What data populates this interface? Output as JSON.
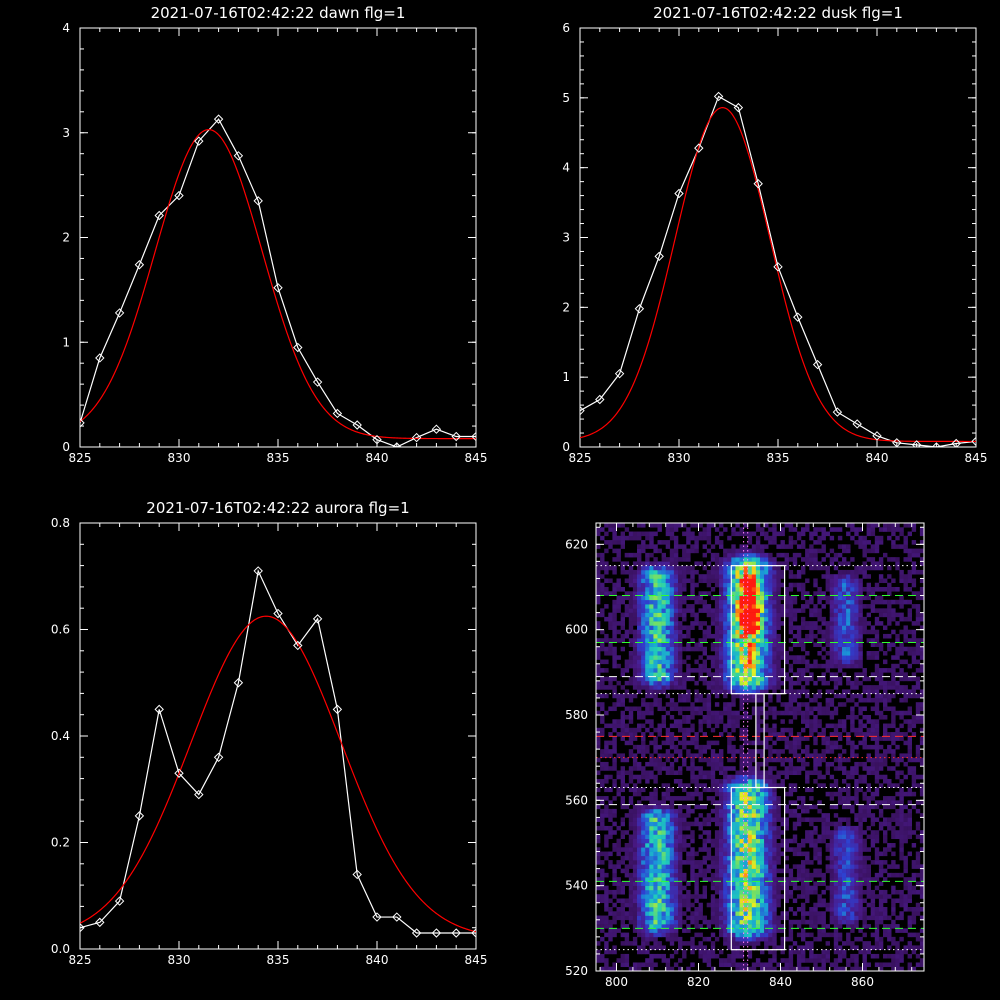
{
  "figure": {
    "background": "#000000",
    "axis_color": "#ffffff",
    "data_color": "#ffffff",
    "fit_color": "#ff0000"
  },
  "chart_data": [
    {
      "id": "dawn",
      "type": "line",
      "title": "2021-07-16T02:42:22 dawn flg=1",
      "xlabel": "",
      "ylabel": "",
      "xlim": [
        825,
        845
      ],
      "ylim": [
        0,
        4
      ],
      "xticks": [
        825,
        830,
        835,
        840,
        845
      ],
      "yticks": [
        0,
        1,
        2,
        3,
        4
      ],
      "grid": false,
      "series": [
        {
          "kind": "data",
          "marker": "diamond",
          "x": [
            825,
            826,
            827,
            828,
            829,
            830,
            831,
            832,
            833,
            834,
            835,
            836,
            837,
            838,
            839,
            840,
            841,
            842,
            843,
            844,
            845
          ],
          "y": [
            0.23,
            0.85,
            1.28,
            1.74,
            2.21,
            2.4,
            2.92,
            3.13,
            2.78,
            2.35,
            1.52,
            0.95,
            0.62,
            0.32,
            0.21,
            0.07,
            0.0,
            0.09,
            0.17,
            0.1,
            0.1
          ]
        },
        {
          "kind": "fit",
          "model": "gaussian",
          "amplitude": 2.95,
          "center": 831.5,
          "sigma": 2.7,
          "offset": 0.08
        }
      ]
    },
    {
      "id": "dusk",
      "type": "line",
      "title": "2021-07-16T02:42:22 dusk flg=1",
      "xlabel": "",
      "ylabel": "",
      "xlim": [
        825,
        845
      ],
      "ylim": [
        0,
        6
      ],
      "xticks": [
        825,
        830,
        835,
        840,
        845
      ],
      "yticks": [
        0,
        1,
        2,
        3,
        4,
        5,
        6
      ],
      "grid": false,
      "series": [
        {
          "kind": "data",
          "marker": "diamond",
          "x": [
            825,
            826,
            827,
            828,
            829,
            830,
            831,
            832,
            833,
            834,
            835,
            836,
            837,
            838,
            839,
            840,
            841,
            842,
            843,
            844,
            845
          ],
          "y": [
            0.52,
            0.68,
            1.05,
            1.98,
            2.73,
            3.63,
            4.28,
            5.02,
            4.86,
            3.77,
            2.58,
            1.86,
            1.18,
            0.5,
            0.33,
            0.16,
            0.06,
            0.03,
            0.0,
            0.05,
            0.08
          ]
        },
        {
          "kind": "fit",
          "model": "gaussian",
          "amplitude": 4.78,
          "center": 832.2,
          "sigma": 2.4,
          "offset": 0.08
        }
      ]
    },
    {
      "id": "aurora",
      "type": "line",
      "title": "2021-07-16T02:42:22 aurora flg=1",
      "xlabel": "",
      "ylabel": "",
      "xlim": [
        825,
        845
      ],
      "ylim": [
        0,
        0.8
      ],
      "xticks": [
        825,
        830,
        835,
        840,
        845
      ],
      "yticks": [
        0,
        0.2,
        0.4,
        0.6,
        0.8
      ],
      "ytick_labels": [
        "0.0",
        "0.2",
        "0.4",
        "0.6",
        "0.8"
      ],
      "grid": false,
      "series": [
        {
          "kind": "data",
          "marker": "diamond",
          "x": [
            825,
            826,
            827,
            828,
            829,
            830,
            831,
            832,
            833,
            834,
            835,
            836,
            837,
            838,
            839,
            840,
            841,
            842,
            843,
            844,
            845
          ],
          "y": [
            0.04,
            0.05,
            0.09,
            0.25,
            0.45,
            0.33,
            0.29,
            0.36,
            0.5,
            0.71,
            0.63,
            0.57,
            0.62,
            0.45,
            0.14,
            0.06,
            0.06,
            0.03,
            0.03,
            0.03,
            0.03
          ]
        },
        {
          "kind": "fit",
          "model": "gaussian",
          "amplitude": 0.605,
          "center": 834.4,
          "sigma": 3.8,
          "offset": 0.02
        }
      ]
    },
    {
      "id": "spectrogram",
      "type": "heatmap",
      "title": "",
      "xlabel": "",
      "ylabel": "",
      "xlim": [
        795,
        875
      ],
      "ylim": [
        520,
        625
      ],
      "xticks": [
        800,
        820,
        840,
        860
      ],
      "yticks": [
        520,
        540,
        560,
        580,
        600,
        620
      ],
      "colormap": [
        "#2a0a3a",
        "#4a1a8a",
        "#2f3fd0",
        "#1a9ad8",
        "#20d0b8",
        "#7ae060",
        "#e8f020",
        "#ff8a10",
        "#ff1a10"
      ],
      "emission_blobs": [
        {
          "x_center": 810,
          "x_width": 3.0,
          "y_from": 531,
          "y_to": 555,
          "peak": 0.55
        },
        {
          "x_center": 810,
          "x_width": 3.0,
          "y_from": 589,
          "y_to": 612,
          "peak": 0.55
        },
        {
          "x_center": 832,
          "x_width": 3.5,
          "y_from": 530,
          "y_to": 562,
          "peak": 0.7
        },
        {
          "x_center": 832,
          "x_width": 3.5,
          "y_from": 588,
          "y_to": 614,
          "peak": 0.8
        },
        {
          "x_center": 832.5,
          "x_width": 1.5,
          "y_from": 602,
          "y_to": 609,
          "peak": 1.0
        },
        {
          "x_center": 856,
          "x_width": 2.5,
          "y_from": 533,
          "y_to": 551,
          "peak": 0.28
        },
        {
          "x_center": 856,
          "x_width": 2.5,
          "y_from": 594,
          "y_to": 610,
          "peak": 0.3
        }
      ],
      "boxes": [
        {
          "x": [
            828,
            841
          ],
          "y": [
            525,
            563
          ]
        },
        {
          "x": [
            828,
            841
          ],
          "y": [
            585,
            615
          ]
        },
        {
          "x": [
            834,
            836
          ],
          "y": [
            563,
            585
          ]
        }
      ],
      "hlines": [
        {
          "y": 615,
          "style": "dotted",
          "color": "#ffffff"
        },
        {
          "y": 608,
          "style": "dashed",
          "color": "#30ff30"
        },
        {
          "y": 597,
          "style": "dashed",
          "color": "#30ff30"
        },
        {
          "y": 589,
          "style": "dashed",
          "color": "#ffffff"
        },
        {
          "y": 585,
          "style": "dotted",
          "color": "#ffffff"
        },
        {
          "y": 575,
          "style": "dashed",
          "color": "#ff3030"
        },
        {
          "y": 570,
          "style": "dotted",
          "color": "#ff3030"
        },
        {
          "y": 563,
          "style": "dotted",
          "color": "#ff3030"
        },
        {
          "y": 563,
          "style": "dotted",
          "color": "#ffffff"
        },
        {
          "y": 559,
          "style": "dashed",
          "color": "#ffffff"
        },
        {
          "y": 541,
          "style": "dashed",
          "color": "#30ff30"
        },
        {
          "y": 530,
          "style": "dashed",
          "color": "#30ff30"
        },
        {
          "y": 525,
          "style": "dotted",
          "color": "#ffffff"
        }
      ],
      "vlines": [
        {
          "x": 831,
          "style": "dotted",
          "color": "#ff80ff"
        },
        {
          "x": 832,
          "style": "dotted",
          "color": "#ff80ff"
        }
      ]
    }
  ]
}
